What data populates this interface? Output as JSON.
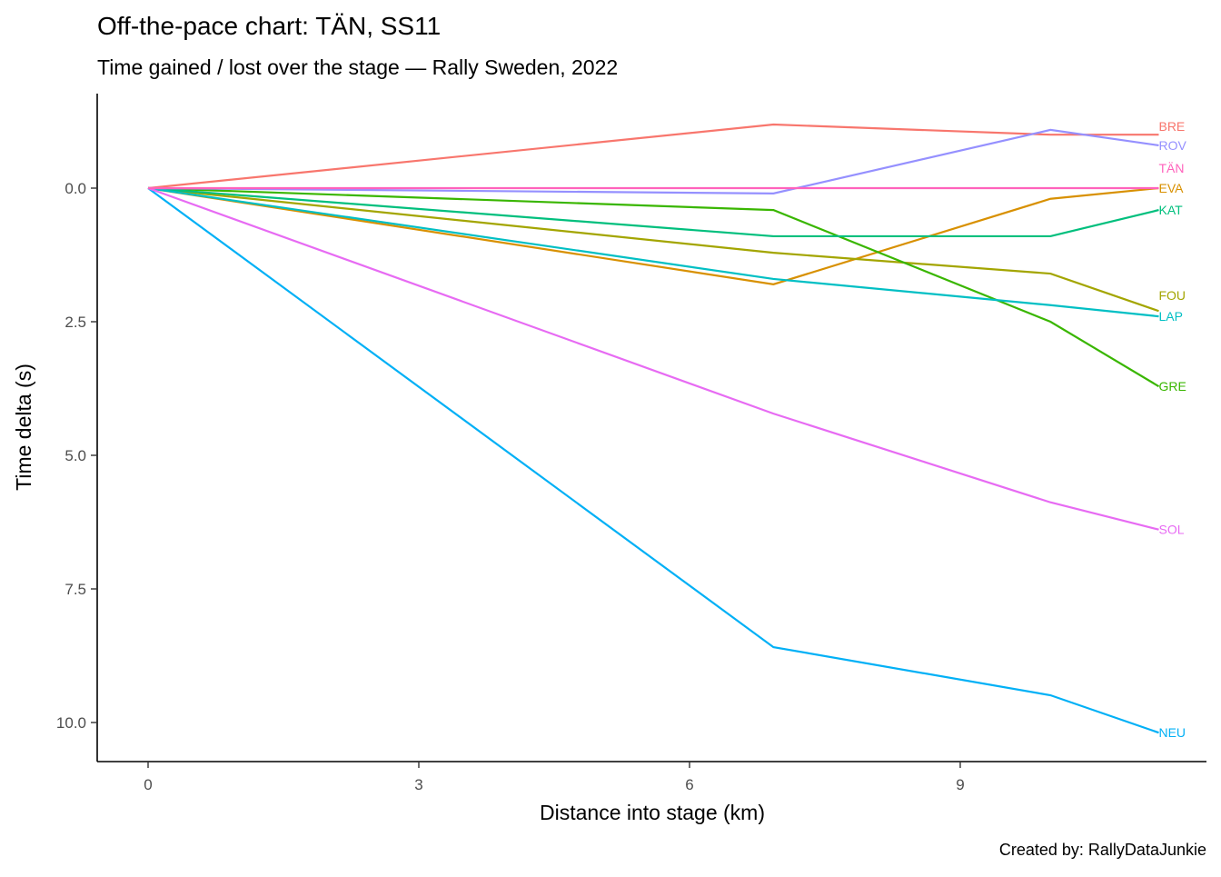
{
  "chart_data": {
    "type": "line",
    "title": "Off-the-pace chart: TÄN, SS11",
    "subtitle": "Time gained / lost over the stage — Rally Sweden, 2022",
    "caption": "Created by: RallyDataJunkie",
    "xlabel": "Distance into stage (km)",
    "ylabel": "Time delta (s)",
    "xlim": [
      -0.55,
      11.7
    ],
    "ylim": [
      -1.7,
      10.8
    ],
    "y_reversed": true,
    "xticks": [
      0,
      3,
      6,
      9
    ],
    "xtick_labels": [
      "0",
      "3",
      "6",
      "9"
    ],
    "yticks": [
      0,
      2.5,
      5,
      7.5,
      10
    ],
    "ytick_labels": [
      "0.0",
      "2.5",
      "5.0",
      "7.5",
      "10.0"
    ],
    "grid": false,
    "legend": "direct labels at line ends (right)",
    "x": [
      0,
      6.93,
      10.0,
      11.2
    ],
    "series": [
      {
        "name": "BRE",
        "color": "#F8766D",
        "values": [
          0,
          -1.19,
          -1.0,
          -1.0
        ]
      },
      {
        "name": "EVA",
        "color": "#D89000",
        "values": [
          0,
          1.8,
          0.2,
          0.0
        ]
      },
      {
        "name": "FOU",
        "color": "#A3A500",
        "values": [
          0,
          1.21,
          1.6,
          2.3
        ]
      },
      {
        "name": "GRE",
        "color": "#39B600",
        "values": [
          0,
          0.41,
          2.5,
          3.71
        ]
      },
      {
        "name": "KAT",
        "color": "#00BF7D",
        "values": [
          0,
          0.9,
          0.9,
          0.41
        ]
      },
      {
        "name": "LAP",
        "color": "#00BFC4",
        "values": [
          0,
          1.7,
          2.19,
          2.4
        ]
      },
      {
        "name": "NEU",
        "color": "#00B0F6",
        "values": [
          0,
          8.59,
          9.49,
          10.19
        ]
      },
      {
        "name": "ROV",
        "color": "#9590FF",
        "values": [
          0,
          0.1,
          -1.09,
          -0.8
        ]
      },
      {
        "name": "SOL",
        "color": "#E76BF3",
        "values": [
          0,
          4.22,
          5.88,
          6.39
        ]
      },
      {
        "name": "TÄN",
        "color": "#FF62BC",
        "values": [
          0,
          0,
          0,
          0
        ]
      }
    ]
  }
}
